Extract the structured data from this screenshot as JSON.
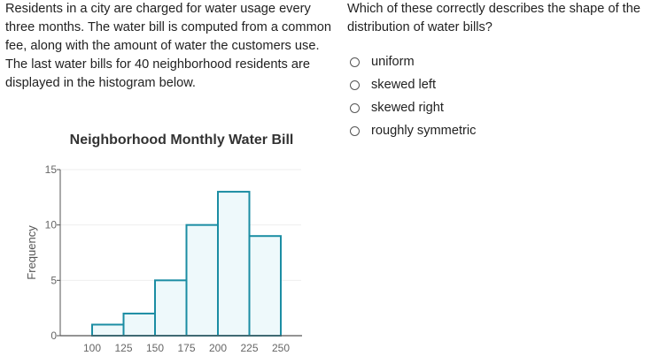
{
  "passage": "Residents in a city are charged for water usage every three months. The water bill is computed from a common fee, along with the amount of water the customers use. The last water bills for 40 neighborhood residents are displayed in the histogram below.",
  "question": "Which of these correctly describes the shape of the distribution of water bills?",
  "options": [
    "uniform",
    "skewed left",
    "skewed right",
    "roughly symmetric"
  ],
  "colors": {
    "bar_stroke": "#1b8da3",
    "bar_fill": "#eef9fb",
    "axis": "#555555",
    "grid": "#eeeeee",
    "text": "#222222"
  },
  "chart_data": {
    "type": "bar",
    "title": "Neighborhood Monthly Water Bill",
    "xlabel": "",
    "ylabel": "Frequency",
    "bin_edges": [
      100,
      125,
      150,
      175,
      200,
      225,
      250
    ],
    "values": [
      1,
      2,
      5,
      10,
      13,
      9
    ],
    "ylim": [
      0,
      15
    ],
    "yticks": [
      0,
      5,
      10,
      15
    ],
    "xticks": [
      "100",
      "125",
      "150",
      "175",
      "200",
      "225",
      "250"
    ],
    "grid": true
  }
}
